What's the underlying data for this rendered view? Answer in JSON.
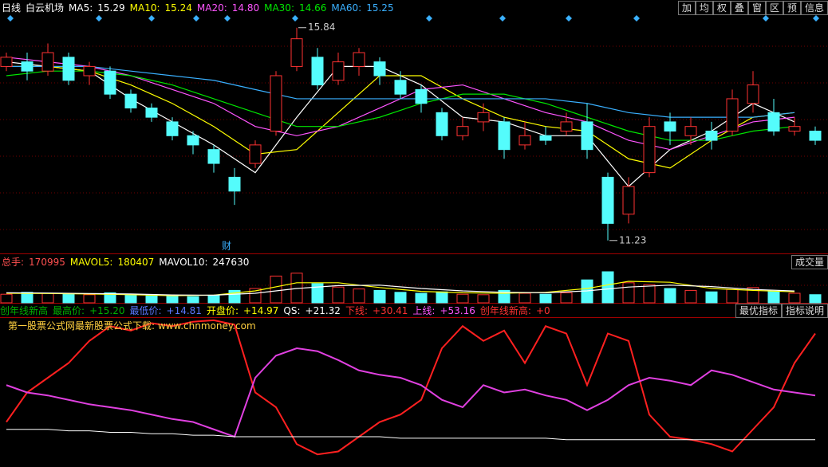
{
  "header": {
    "period": "日线",
    "stock": "白云机场"
  },
  "toolbar": [
    "加",
    "均",
    "权",
    "叠",
    "窗",
    "区",
    "预",
    "信息"
  ],
  "chart_data": [
    {
      "type": "candlestick",
      "ylim": [
        10.95,
        16.06
      ],
      "open": [
        15.0,
        15.1,
        14.9,
        15.2,
        14.8,
        14.9,
        14.4,
        14.1,
        13.8,
        13.5,
        13.2,
        12.6,
        12.9,
        13.6,
        15.0,
        15.2,
        14.7,
        15.0,
        15.1,
        14.7,
        14.5,
        14.0,
        13.5,
        13.8,
        13.8,
        13.3,
        13.5,
        13.6,
        13.8,
        12.6,
        11.8,
        12.7,
        13.8,
        13.5,
        13.6,
        13.6,
        14.2,
        14.0,
        13.6,
        13.6
      ],
      "close": [
        15.2,
        14.9,
        15.3,
        14.7,
        15.0,
        14.4,
        14.1,
        13.9,
        13.5,
        13.3,
        12.9,
        12.3,
        13.3,
        14.8,
        15.6,
        14.6,
        15.1,
        15.3,
        14.8,
        14.4,
        14.2,
        13.5,
        13.7,
        14.0,
        13.2,
        13.5,
        13.4,
        13.8,
        13.2,
        11.6,
        12.4,
        13.7,
        13.6,
        13.7,
        13.4,
        14.3,
        14.6,
        13.6,
        13.7,
        13.4
      ],
      "high": [
        15.3,
        15.3,
        15.5,
        15.3,
        15.1,
        15.0,
        14.5,
        14.2,
        13.9,
        13.6,
        13.3,
        12.8,
        13.4,
        14.9,
        15.84,
        15.4,
        15.3,
        15.4,
        15.2,
        14.9,
        14.6,
        14.1,
        13.9,
        14.2,
        13.9,
        13.8,
        13.7,
        14.0,
        14.2,
        12.7,
        12.6,
        13.9,
        14.0,
        13.9,
        13.8,
        14.5,
        14.9,
        14.3,
        13.9,
        13.7
      ],
      "low": [
        14.9,
        14.7,
        14.8,
        14.6,
        14.6,
        14.3,
        14.0,
        13.8,
        13.4,
        13.1,
        12.7,
        12.0,
        12.8,
        13.5,
        14.9,
        14.5,
        14.6,
        14.8,
        14.6,
        14.3,
        14.0,
        13.4,
        13.4,
        13.6,
        13.0,
        13.2,
        13.3,
        13.5,
        13.0,
        11.23,
        11.6,
        12.6,
        13.3,
        13.3,
        13.2,
        13.5,
        14.0,
        13.5,
        13.5,
        13.3
      ],
      "up_color": "#ff3232",
      "down_color": "#54fcfc",
      "series": [
        {
          "name": "MA5:",
          "last": 15.29,
          "color": "#ffffff",
          "values": [
            15.1,
            15.0,
            14.9,
            14.3,
            13.8,
            13.3,
            12.7,
            13.9,
            15.0,
            15.0,
            14.6,
            13.9,
            13.8,
            13.5,
            13.5,
            12.4,
            13.2,
            13.6,
            14.2,
            13.8
          ]
        },
        {
          "name": "MA10:",
          "last": 15.24,
          "color": "#ffff00",
          "values": [
            15.0,
            15.0,
            14.9,
            14.6,
            14.2,
            13.7,
            13.1,
            13.2,
            14.0,
            14.8,
            14.8,
            14.3,
            13.9,
            13.7,
            13.6,
            13.0,
            12.8,
            13.4,
            13.9,
            14.0
          ]
        },
        {
          "name": "MA20:",
          "last": 14.8,
          "value_label": "14.80",
          "color": "#ff55ff",
          "values": [
            15.2,
            15.1,
            15.0,
            14.8,
            14.5,
            14.2,
            13.7,
            13.5,
            13.7,
            14.1,
            14.5,
            14.6,
            14.3,
            14.0,
            13.8,
            13.4,
            13.2,
            13.5,
            13.8,
            13.9
          ]
        },
        {
          "name": "MA30:",
          "last": 14.66,
          "color": "#00e600",
          "values": [
            14.8,
            14.9,
            14.9,
            14.8,
            14.6,
            14.3,
            14.0,
            13.7,
            13.7,
            13.9,
            14.2,
            14.4,
            14.4,
            14.2,
            13.9,
            13.6,
            13.4,
            13.4,
            13.6,
            13.7
          ]
        },
        {
          "name": "MA60:",
          "last": 15.25,
          "color": "#3ab0ff",
          "values": [
            15.0,
            15.0,
            15.0,
            14.9,
            14.8,
            14.7,
            14.5,
            14.3,
            14.3,
            14.3,
            14.3,
            14.3,
            14.3,
            14.3,
            14.2,
            14.0,
            13.9,
            13.9,
            13.9,
            14.0
          ]
        }
      ],
      "markers": [
        "财"
      ]
    },
    {
      "type": "bar",
      "ylim": [
        0,
        700000
      ],
      "button": "成交量",
      "header": [
        {
          "label": "总手:",
          "value": 170995,
          "color": "#ff5050"
        }
      ],
      "values": [
        180000,
        220000,
        200000,
        190000,
        170000,
        210000,
        160000,
        150000,
        140000,
        130000,
        150000,
        260000,
        300000,
        560000,
        620000,
        400000,
        330000,
        290000,
        260000,
        220000,
        200000,
        230000,
        180000,
        170000,
        260000,
        200000,
        180000,
        210000,
        480000,
        650000,
        420000,
        380000,
        300000,
        260000,
        230000,
        280000,
        320000,
        240000,
        200000,
        170995
      ],
      "series": [
        {
          "name": "MAVOL5:",
          "last": 180407,
          "color": "#ffff00",
          "values": [
            200000,
            195000,
            185000,
            170000,
            150000,
            160000,
            250000,
            420000,
            420000,
            320000,
            240000,
            210000,
            200000,
            220000,
            300000,
            450000,
            430000,
            300000,
            260000,
            230000
          ]
        },
        {
          "name": "MAVOL10:",
          "last": 247630,
          "color": "#ffffff",
          "values": [
            210000,
            205000,
            195000,
            185000,
            165000,
            160000,
            200000,
            300000,
            360000,
            370000,
            300000,
            250000,
            220000,
            210000,
            250000,
            330000,
            370000,
            340000,
            280000,
            248000
          ]
        }
      ]
    },
    {
      "type": "line",
      "ylim": [
        0,
        100
      ],
      "buttons": [
        "最优指标",
        "指标说明"
      ],
      "subtitle": "第一股票公式网最新股票公式下载: www.chnmoney.com",
      "header": [
        {
          "label": "创年线新高",
          "color": "#00b000"
        },
        {
          "label": "最高价:",
          "value": 15.2,
          "value_label": "+15.20",
          "color": "#00b000"
        },
        {
          "label": "最低价:",
          "value": 14.81,
          "value_label": "+14.81",
          "color": "#5a78ff"
        },
        {
          "label": "开盘价:",
          "value": 14.97,
          "value_label": "+14.97",
          "color": "#ffff00"
        },
        {
          "label": "QS:",
          "value": 21.32,
          "value_label": "+21.32",
          "color": "#ffffff"
        },
        {
          "label": "下线:",
          "value": 30.41,
          "value_label": "+30.41",
          "color": "#ff3232"
        },
        {
          "label": "上线:",
          "value": 53.16,
          "value_label": "+53.16",
          "color": "#ff55ff"
        },
        {
          "label": "创年线新高:",
          "value": 0,
          "value_label": "+0",
          "color": "#ff3232"
        }
      ],
      "series": [
        {
          "color": "#ff2020",
          "values": [
            30,
            50,
            60,
            70,
            85,
            95,
            92,
            97,
            95,
            98,
            99,
            96,
            50,
            40,
            15,
            8,
            10,
            20,
            30,
            35,
            45,
            80,
            95,
            85,
            92,
            70,
            95,
            90,
            55,
            90,
            85,
            35,
            20,
            18,
            15,
            10,
            25,
            40,
            70,
            90
          ]
        },
        {
          "color": "#e040e0",
          "values": [
            55,
            50,
            48,
            45,
            42,
            40,
            38,
            35,
            32,
            30,
            25,
            20,
            60,
            75,
            80,
            78,
            72,
            65,
            62,
            60,
            55,
            45,
            40,
            55,
            50,
            52,
            48,
            45,
            38,
            45,
            55,
            60,
            58,
            55,
            65,
            62,
            57,
            52,
            50,
            48
          ]
        },
        {
          "color": "#ffffff",
          "values": [
            25,
            25,
            25,
            24,
            24,
            23,
            23,
            22,
            22,
            21,
            21,
            20,
            20,
            20,
            20,
            20,
            20,
            20,
            20,
            19,
            19,
            19,
            19,
            19,
            19,
            19,
            19,
            18,
            18,
            18,
            18,
            18,
            18,
            18,
            18,
            18,
            18,
            18,
            18,
            18
          ]
        }
      ]
    }
  ]
}
